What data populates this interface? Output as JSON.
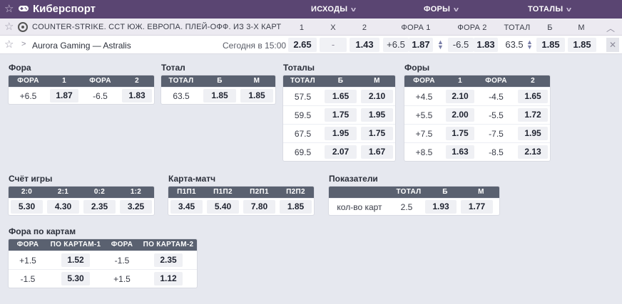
{
  "header": {
    "title": "Киберспорт",
    "cols": [
      {
        "label": "ИСХОДЫ"
      },
      {
        "label": "ФОРЫ"
      },
      {
        "label": "ТОТАЛЫ"
      }
    ]
  },
  "league": {
    "name": "COUNTER-STRIKE. CCT ЮЖ. ЕВРОПА. ПЛЕЙ-ОФФ. ИЗ 3-Х КАРТ",
    "cols": [
      "1",
      "X",
      "2",
      "ФОРА 1",
      "ФОРА 2",
      "ТОТАЛ",
      "Б",
      "М"
    ]
  },
  "match": {
    "teams": "Aurora Gaming — Astralis",
    "time": "Сегодня в 15:00",
    "p1": "2.65",
    "x": "-",
    "p2": "1.43",
    "fora1_param": "+6.5",
    "fora1_odd": "1.87",
    "fora2_param": "-6.5",
    "fora2_odd": "1.83",
    "total": "63.5",
    "over": "1.85",
    "under": "1.85"
  },
  "fora": {
    "title": "Фора",
    "head": [
      "ФОРА",
      "1",
      "ФОРА",
      "2"
    ],
    "rows": [
      [
        "+6.5",
        "1.87",
        "-6.5",
        "1.83"
      ]
    ]
  },
  "total": {
    "title": "Тотал",
    "head": [
      "ТОТАЛ",
      "Б",
      "М"
    ],
    "rows": [
      [
        "63.5",
        "1.85",
        "1.85"
      ]
    ]
  },
  "totals": {
    "title": "Тоталы",
    "head": [
      "ТОТАЛ",
      "Б",
      "М"
    ],
    "rows": [
      [
        "57.5",
        "1.65",
        "2.10"
      ],
      [
        "59.5",
        "1.75",
        "1.95"
      ],
      [
        "67.5",
        "1.95",
        "1.75"
      ],
      [
        "69.5",
        "2.07",
        "1.67"
      ]
    ]
  },
  "foras": {
    "title": "Форы",
    "head": [
      "ФОРА",
      "1",
      "ФОРА",
      "2"
    ],
    "rows": [
      [
        "+4.5",
        "2.10",
        "-4.5",
        "1.65"
      ],
      [
        "+5.5",
        "2.00",
        "-5.5",
        "1.72"
      ],
      [
        "+7.5",
        "1.75",
        "-7.5",
        "1.95"
      ],
      [
        "+8.5",
        "1.63",
        "-8.5",
        "2.13"
      ]
    ]
  },
  "score": {
    "title": "Счёт игры",
    "head": [
      "2:0",
      "2:1",
      "0:2",
      "1:2"
    ],
    "rows": [
      [
        "5.30",
        "4.30",
        "2.35",
        "3.25"
      ]
    ]
  },
  "map_match": {
    "title": "Карта-матч",
    "head": [
      "П1П1",
      "П1П2",
      "П2П1",
      "П2П2"
    ],
    "rows": [
      [
        "3.45",
        "5.40",
        "7.80",
        "1.85"
      ]
    ]
  },
  "stats": {
    "title": "Показатели",
    "head": [
      "",
      "ТОТАЛ",
      "Б",
      "М"
    ],
    "rows": [
      [
        "кол-во карт",
        "2.5",
        "1.93",
        "1.77"
      ]
    ]
  },
  "map_fora": {
    "title": "Фора по картам",
    "head": [
      "ФОРА",
      "ПО КАРТАМ-1",
      "ФОРА",
      "ПО КАРТАМ-2"
    ],
    "rows": [
      [
        "+1.5",
        "1.52",
        "-1.5",
        "2.35"
      ],
      [
        "-1.5",
        "5.30",
        "+1.5",
        "1.12"
      ]
    ]
  }
}
